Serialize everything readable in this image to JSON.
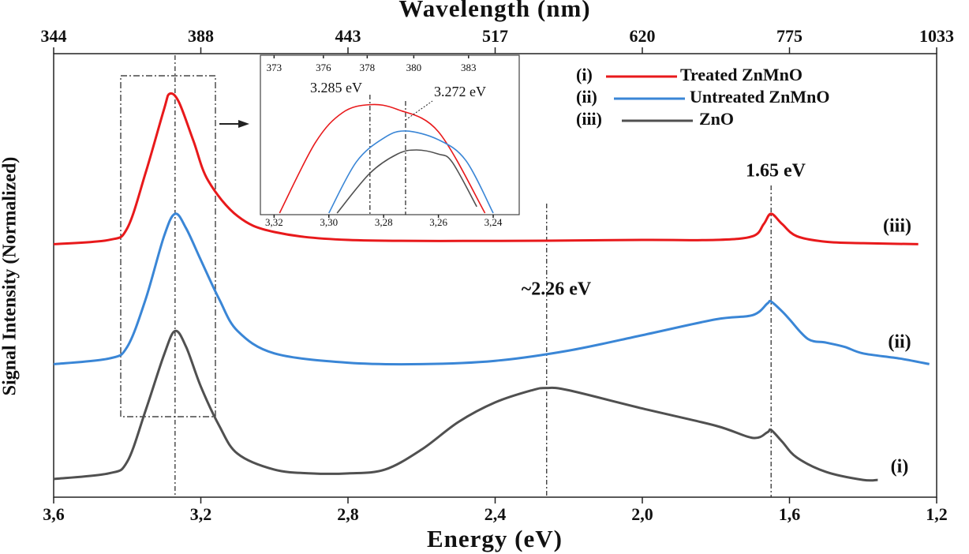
{
  "chart_data": [
    {
      "type": "line",
      "xlabel": "Energy (eV)",
      "x2label": "Wavelength (nm)",
      "ylabel": "Signal Intensity (Normalized)",
      "xlim": [
        3.6,
        1.2
      ],
      "xticks": [
        {
          "value": 3.6,
          "label": "3,6"
        },
        {
          "value": 3.2,
          "label": "3,2"
        },
        {
          "value": 2.8,
          "label": "2,8"
        },
        {
          "value": 2.4,
          "label": "2,4"
        },
        {
          "value": 2.0,
          "label": "2,0"
        },
        {
          "value": 1.6,
          "label": "1,6"
        },
        {
          "value": 1.2,
          "label": "1,2"
        }
      ],
      "x2ticks": [
        {
          "value": 3.6,
          "label": "344"
        },
        {
          "value": 3.2,
          "label": "388"
        },
        {
          "value": 2.8,
          "label": "443"
        },
        {
          "value": 2.4,
          "label": "517"
        },
        {
          "value": 2.0,
          "label": "620"
        },
        {
          "value": 1.6,
          "label": "775"
        },
        {
          "value": 1.2,
          "label": "1033"
        }
      ],
      "ylim": [
        0,
        95
      ],
      "legend_labels": [
        "(i)",
        "(ii)",
        "(iii)"
      ],
      "legend": "upper right",
      "series": [
        {
          "name": "Treated ZnMnO",
          "color": "#e8191b",
          "x": [
            3.6,
            3.45,
            3.4,
            3.35,
            3.3,
            3.285,
            3.26,
            3.22,
            3.18,
            3.1,
            3.0,
            2.8,
            2.4,
            2.0,
            1.8,
            1.7,
            1.67,
            1.65,
            1.62,
            1.58,
            1.5,
            1.4,
            1.25
          ],
          "values": [
            54.2,
            55.1,
            57.6,
            69.5,
            83.1,
            86.4,
            84.7,
            76.3,
            67.8,
            60.2,
            56.8,
            55.1,
            54.9,
            55.1,
            55.1,
            55.9,
            58.5,
            60.7,
            58.5,
            55.9,
            54.7,
            54.4,
            54.2
          ]
        },
        {
          "name": "Untreated ZnMnO",
          "color": "#3a86d6",
          "x": [
            3.6,
            3.45,
            3.4,
            3.35,
            3.3,
            3.27,
            3.24,
            3.2,
            3.15,
            3.1,
            3.0,
            2.8,
            2.6,
            2.4,
            2.2,
            2.0,
            1.8,
            1.7,
            1.66,
            1.65,
            1.62,
            1.6,
            1.55,
            1.5,
            1.45,
            1.4,
            1.3,
            1.22
          ],
          "values": [
            28.5,
            29.7,
            32.2,
            42.4,
            55.9,
            60.7,
            57.6,
            50.8,
            42.4,
            35.6,
            30.8,
            28.8,
            28.5,
            29.2,
            31.4,
            34.7,
            38.1,
            39.0,
            41.5,
            41.9,
            39.8,
            38.1,
            33.9,
            33.1,
            32.2,
            30.8,
            29.7,
            28.5
          ]
        },
        {
          "name": "ZnO",
          "color": "#505050",
          "x": [
            3.6,
            3.45,
            3.4,
            3.35,
            3.3,
            3.27,
            3.24,
            3.2,
            3.15,
            3.1,
            3.0,
            2.9,
            2.8,
            2.7,
            2.6,
            2.5,
            2.4,
            2.3,
            2.26,
            2.2,
            2.0,
            1.8,
            1.7,
            1.66,
            1.65,
            1.62,
            1.58,
            1.5,
            1.4,
            1.36
          ],
          "values": [
            3.9,
            5.1,
            7.6,
            18.6,
            30.5,
            35.6,
            32.2,
            23.7,
            15.3,
            9.3,
            5.9,
            5.1,
            5.1,
            5.9,
            10.2,
            16.1,
            20.3,
            22.9,
            23.4,
            22.9,
            19.0,
            15.3,
            12.7,
            13.9,
            14.4,
            11.9,
            8.5,
            5.4,
            3.7,
            3.7
          ]
        }
      ],
      "reference_lines": [
        3.27,
        2.26,
        1.65
      ],
      "annotations": [
        "~2.26 eV",
        "1.65 eV",
        "(iii)",
        "(ii)",
        "(i)"
      ]
    },
    {
      "type": "line",
      "xlim": [
        3.325,
        3.2305
      ],
      "xticks": [
        {
          "value": 3.32,
          "label": "3,32"
        },
        {
          "value": 3.3,
          "label": "3,30"
        },
        {
          "value": 3.28,
          "label": "3,28"
        },
        {
          "value": 3.26,
          "label": "3,26"
        },
        {
          "value": 3.24,
          "label": "3,24"
        }
      ],
      "x2ticks": [
        {
          "value": 3.32,
          "label": "373"
        },
        {
          "value": 3.302,
          "label": "376"
        },
        {
          "value": 3.286,
          "label": "378"
        },
        {
          "value": 3.269,
          "label": "380"
        },
        {
          "value": 3.249,
          "label": "383"
        }
      ],
      "ylim": [
        0,
        100
      ],
      "series": [
        {
          "name": "Treated ZnMnO",
          "color": "#e8191b",
          "x": [
            3.318,
            3.305,
            3.295,
            3.285,
            3.275,
            3.26,
            3.243
          ],
          "values": [
            1,
            45,
            64,
            69,
            66,
            52,
            1
          ]
        },
        {
          "name": "Untreated ZnMnO",
          "color": "#3a86d6",
          "x": [
            3.3,
            3.29,
            3.28,
            3.272,
            3.26,
            3.25,
            3.24
          ],
          "values": [
            1,
            33,
            48,
            52.5,
            47,
            34,
            1
          ]
        },
        {
          "name": "ZnO",
          "color": "#505050",
          "x": [
            3.297,
            3.285,
            3.275,
            3.268,
            3.26,
            3.255,
            3.246
          ],
          "values": [
            1,
            26,
            38,
            40.6,
            38,
            33,
            5
          ]
        }
      ],
      "reference_lines": [
        3.285,
        3.272
      ],
      "annotations": [
        "3.285 eV",
        "3.272 eV"
      ]
    }
  ]
}
